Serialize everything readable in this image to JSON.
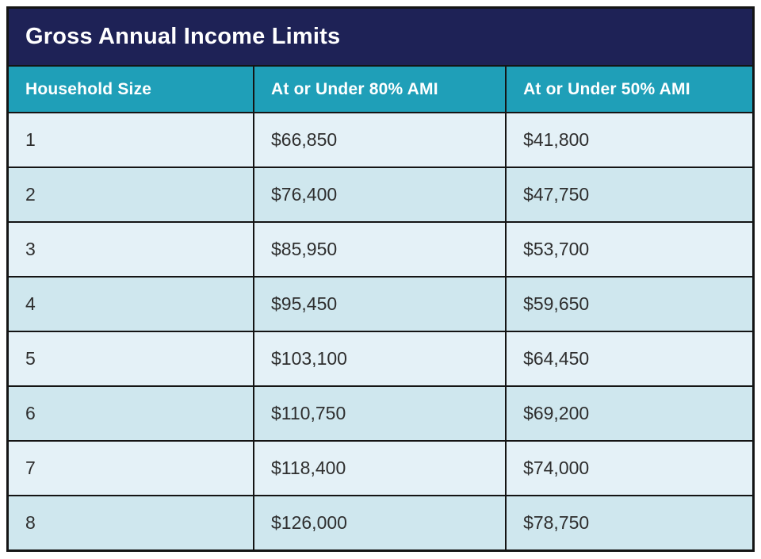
{
  "table": {
    "title": "Gross Annual Income Limits",
    "columns": [
      "Household Size",
      "At or Under 80% AMI",
      "At or Under 50% AMI"
    ],
    "rows": [
      [
        "1",
        "$66,850",
        "$41,800"
      ],
      [
        "2",
        "$76,400",
        "$47,750"
      ],
      [
        "3",
        "$85,950",
        "$53,700"
      ],
      [
        "4",
        "$95,450",
        "$59,650"
      ],
      [
        "5",
        "$103,100",
        "$64,450"
      ],
      [
        "6",
        "$110,750",
        "$69,200"
      ],
      [
        "7",
        "$118,400",
        "$74,000"
      ],
      [
        "8",
        "$126,000",
        "$78,750"
      ]
    ],
    "colors": {
      "title_bg": "#1e2256",
      "header_bg": "#1f9fb8",
      "row_odd_bg": "#e4f1f7",
      "row_even_bg": "#cfe7ee",
      "border": "#141414",
      "title_text": "#ffffff",
      "header_text": "#ffffff",
      "cell_text": "#2e2e2e"
    }
  },
  "chart_data": {
    "type": "table",
    "title": "Gross Annual Income Limits",
    "categories": [
      "Household Size",
      "At or Under 80% AMI",
      "At or Under 50% AMI"
    ],
    "series": [
      {
        "name": "At or Under 80% AMI",
        "values": [
          66850,
          76400,
          85950,
          95450,
          103100,
          110750,
          118400,
          126000
        ]
      },
      {
        "name": "At or Under 50% AMI",
        "values": [
          41800,
          47750,
          53700,
          59650,
          64450,
          69200,
          74000,
          78750
        ]
      }
    ],
    "x": [
      1,
      2,
      3,
      4,
      5,
      6,
      7,
      8
    ]
  }
}
